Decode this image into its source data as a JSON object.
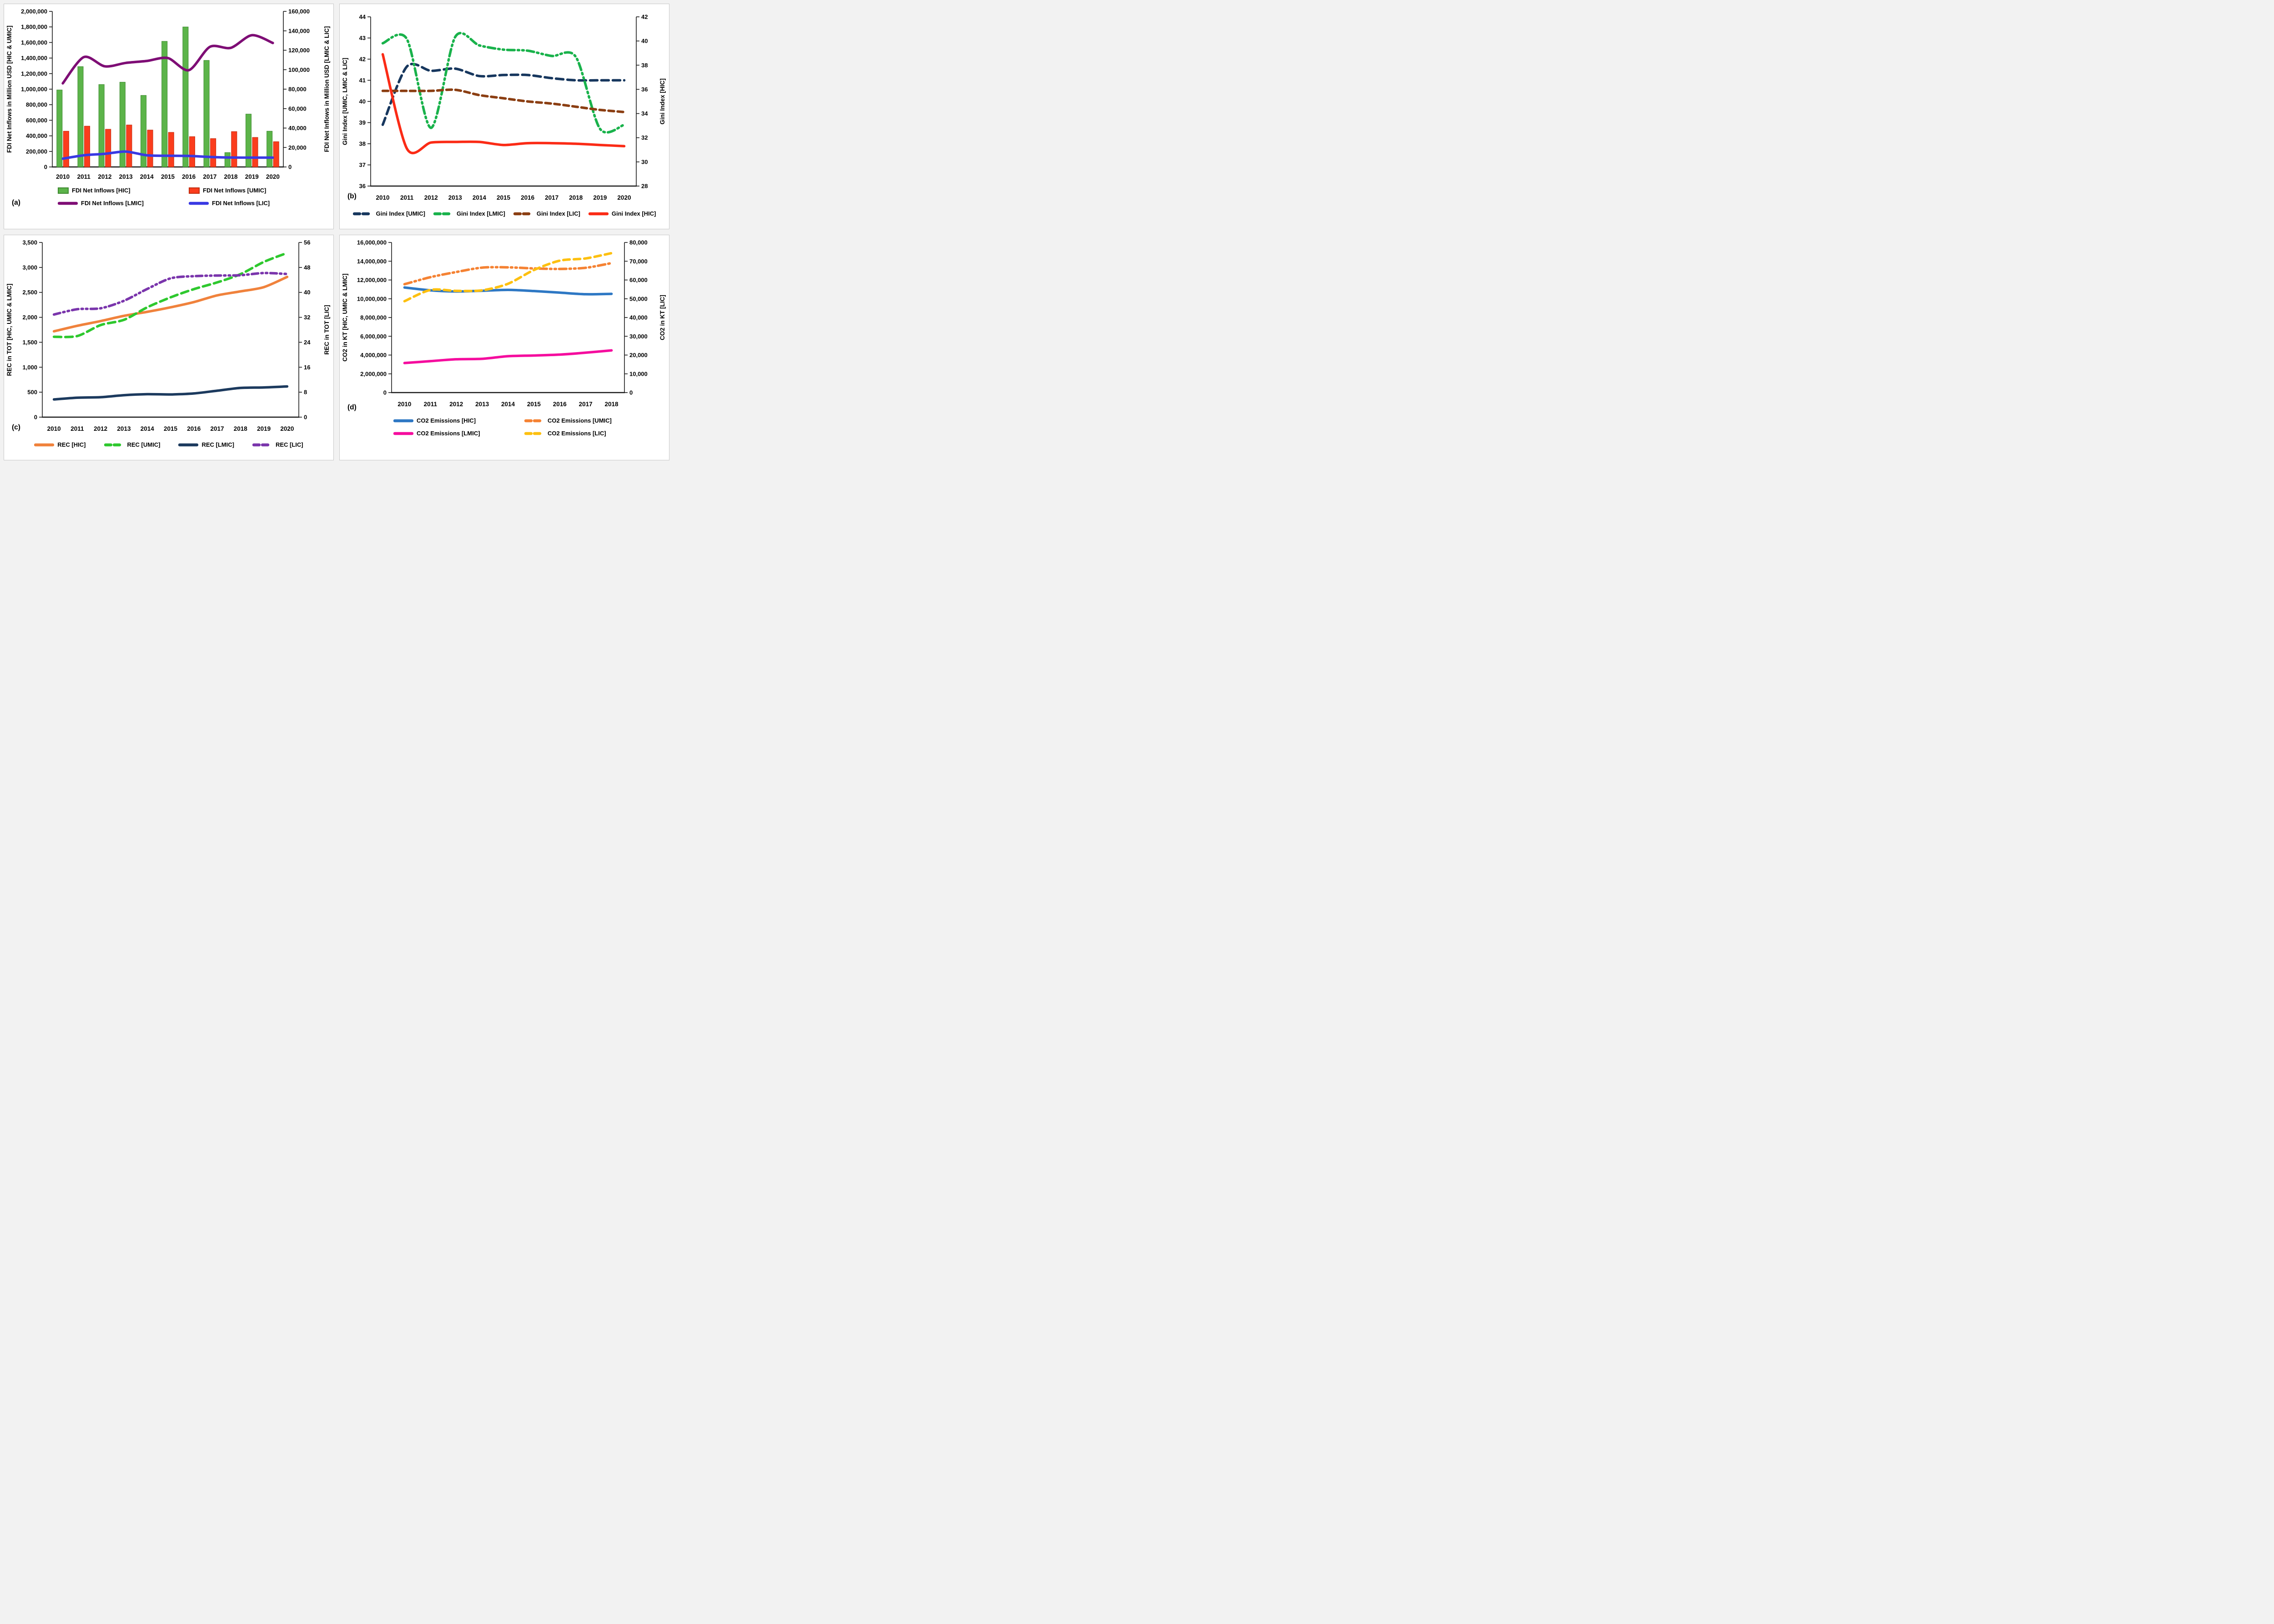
{
  "chart_data": {
    "panels": [
      {
        "id": "a",
        "panel_label": "(a)",
        "type": "combo-bar-line",
        "categories": [
          "2010",
          "2011",
          "2012",
          "2013",
          "2014",
          "2015",
          "2016",
          "2017",
          "2018",
          "2019",
          "2020"
        ],
        "axes": {
          "left": {
            "label": "FDI Net Inflows in Million USD [HIC & UMIC]",
            "min": 0,
            "max": 2000000,
            "step": 200000
          },
          "right": {
            "label": "FDI Net Inflows in Million USD [LMIC & LIC]",
            "min": 0,
            "max": 160000,
            "step": 20000
          }
        },
        "series": [
          {
            "name": "FDI Net Inflows [HIC]",
            "kind": "bar",
            "axis": "left",
            "color": "#5CB44A",
            "border": "#3E8A30",
            "values": [
              990000,
              1290000,
              1060000,
              1090000,
              920000,
              1615000,
              1800000,
              1370000,
              185000,
              680000,
              460000
            ]
          },
          {
            "name": "FDI Net Inflows [UMIC]",
            "kind": "bar",
            "axis": "left",
            "color": "#FB3D1D",
            "border": "#C22D10",
            "values": [
              460000,
              525000,
              485000,
              540000,
              475000,
              445000,
              390000,
              365000,
              455000,
              380000,
              325000
            ]
          },
          {
            "name": "FDI Net Inflows [LMIC]",
            "kind": "line",
            "axis": "right",
            "color": "#7E0D75",
            "dash": "",
            "values": [
              86000,
              113000,
              103500,
              107000,
              109000,
              112000,
              99500,
              123500,
              122500,
              135500,
              127500
            ]
          },
          {
            "name": "FDI Net Inflows [LIC]",
            "kind": "line",
            "axis": "right",
            "color": "#3939E3",
            "dash": "",
            "values": [
              8500,
              12000,
              13500,
              15800,
              12000,
              11500,
              11300,
              10300,
              9700,
              9600,
              9600
            ]
          }
        ],
        "legend_layout": "grid"
      },
      {
        "id": "b",
        "panel_label": "(b)",
        "type": "line",
        "categories": [
          "2010",
          "2011",
          "2012",
          "2013",
          "2014",
          "2015",
          "2016",
          "2017",
          "2018",
          "2019",
          "2020"
        ],
        "axes": {
          "left": {
            "label": "Gini Index [UMIC, LMIC & LIC]",
            "min": 36,
            "max": 44,
            "step": 1
          },
          "right": {
            "label": "Gini Index [HIC]",
            "min": 28,
            "max": 42,
            "step": 2
          }
        },
        "series": [
          {
            "name": "Gini Index [UMIC]",
            "kind": "line",
            "axis": "left",
            "color": "#17375E",
            "dash": "16 9",
            "values": [
              38.9,
              41.65,
              41.45,
              41.55,
              41.2,
              41.25,
              41.25,
              41.1,
              41.0,
              41.0,
              41.0
            ]
          },
          {
            "name": "Gini Index [LMIC]",
            "kind": "line",
            "axis": "left",
            "color": "#19B24B",
            "dash": "16 7 3 7 3 7",
            "values": [
              42.75,
              42.95,
              38.75,
              43.05,
              42.65,
              42.45,
              42.4,
              42.15,
              42.1,
              38.7,
              38.9
            ]
          },
          {
            "name": "Gini Index [LIC]",
            "kind": "line",
            "axis": "left",
            "color": "#8B3E12",
            "dash": "12 8",
            "values": [
              40.5,
              40.5,
              40.5,
              40.55,
              40.3,
              40.15,
              40.0,
              39.9,
              39.75,
              39.6,
              39.5
            ]
          },
          {
            "name": "Gini Index [HIC]",
            "kind": "line",
            "axis": "right",
            "color": "#FB2B16",
            "dash": "",
            "values": [
              38.9,
              31.1,
              31.6,
              31.65,
              31.65,
              31.4,
              31.55,
              31.55,
              31.5,
              31.4,
              31.3
            ]
          }
        ],
        "legend_layout": "row-s"
      },
      {
        "id": "c",
        "panel_label": "(c)",
        "type": "line",
        "categories": [
          "2010",
          "2011",
          "2012",
          "2013",
          "2014",
          "2015",
          "2016",
          "2017",
          "2018",
          "2019",
          "2020"
        ],
        "axes": {
          "left": {
            "label": "REC in TOT [HIC, UMIC & LMIC]",
            "min": 0,
            "max": 3500,
            "step": 500
          },
          "right": {
            "label": "REC in TOT [LIC]",
            "min": 0,
            "max": 56,
            "step": 8
          }
        },
        "series": [
          {
            "name": "REC [HIC]",
            "kind": "line",
            "axis": "left",
            "color": "#F0823C",
            "dash": "",
            "values": [
              1720,
              1830,
              1925,
              2030,
              2110,
              2200,
              2305,
              2440,
              2520,
              2605,
              2810
            ]
          },
          {
            "name": "REC [UMIC]",
            "kind": "line",
            "axis": "left",
            "color": "#2EC82E",
            "dash": "16 9",
            "values": [
              1610,
              1625,
              1845,
              1950,
              2200,
              2400,
              2565,
              2700,
              2865,
              3110,
              3290
            ]
          },
          {
            "name": "REC [LMIC]",
            "kind": "line",
            "axis": "left",
            "color": "#1C3A5E",
            "dash": "",
            "values": [
              355,
              390,
              400,
              440,
              460,
              455,
              475,
              530,
              585,
              595,
              615
            ]
          },
          {
            "name": "REC [LIC]",
            "kind": "line",
            "axis": "right",
            "color": "#7A35AC",
            "dash": "14 7 3 7 3 7",
            "values": [
              32.9,
              34.6,
              34.9,
              37.3,
              41.1,
              44.5,
              45.2,
              45.4,
              45.5,
              46.2,
              45.9
            ]
          }
        ],
        "legend_layout": "row-l"
      },
      {
        "id": "d",
        "panel_label": "(d)",
        "type": "line",
        "categories": [
          "2010",
          "2011",
          "2012",
          "2013",
          "2014",
          "2015",
          "2016",
          "2017",
          "2018"
        ],
        "axes": {
          "left": {
            "label": "CO2 in KT [HIC, UMIC & LMIC]",
            "min": 0,
            "max": 16000000,
            "step": 2000000
          },
          "right": {
            "label": "CO2 in KT [LIC]",
            "min": 0,
            "max": 80000,
            "step": 10000
          }
        },
        "series": [
          {
            "name": "CO2 Emissions [HIC]",
            "kind": "line",
            "axis": "left",
            "color": "#2E78C4",
            "dash": "",
            "values": [
              11200000,
              10900000,
              10780000,
              10850000,
              10950000,
              10820000,
              10650000,
              10480000,
              10520000
            ]
          },
          {
            "name": "CO2 Emissions [UMIC]",
            "kind": "line",
            "axis": "left",
            "color": "#F58233",
            "dash": "16 7 3 7 3 7",
            "values": [
              11550000,
              12300000,
              12850000,
              13320000,
              13350000,
              13230000,
              13180000,
              13300000,
              13800000
            ]
          },
          {
            "name": "CO2 Emissions [LMIC]",
            "kind": "line",
            "axis": "left",
            "color": "#F50D9E",
            "dash": "",
            "values": [
              3150000,
              3350000,
              3550000,
              3600000,
              3880000,
              3950000,
              4050000,
              4250000,
              4500000
            ]
          },
          {
            "name": "CO2 Emissions [LIC]",
            "kind": "line",
            "axis": "right",
            "color": "#FDC010",
            "dash": "14 9",
            "values": [
              48700,
              54700,
              54200,
              54500,
              58000,
              65300,
              70300,
              71500,
              74300
            ]
          }
        ],
        "legend_layout": "grid"
      }
    ]
  }
}
